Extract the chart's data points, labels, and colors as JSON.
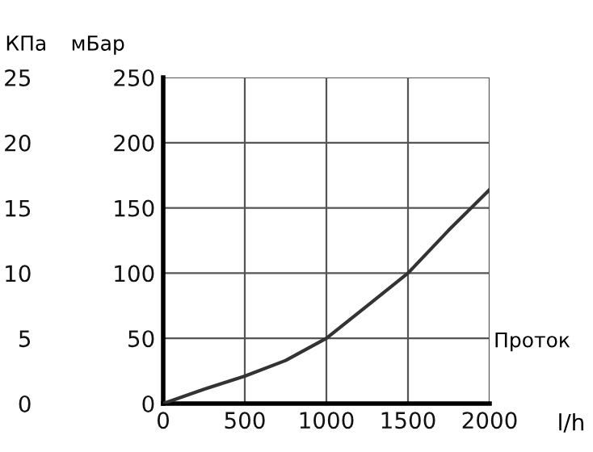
{
  "chart_data": {
    "type": "line",
    "xlabel": "l/h",
    "ylabel": "мБар",
    "y2label": "КПа",
    "annotations": [
      "Проток"
    ],
    "x": [
      0,
      250,
      500,
      750,
      1000,
      1250,
      1500,
      1750,
      2000
    ],
    "series": [
      {
        "color": "#333333",
        "values": [
          0,
          11,
          21,
          33,
          50,
          75,
          100,
          133,
          164
        ]
      }
    ],
    "xlim": [
      0,
      2000
    ],
    "xticks": [
      0,
      500,
      1000,
      1500,
      2000
    ],
    "ylim": [
      0,
      250
    ],
    "yticks": [
      0,
      50,
      100,
      150,
      200,
      250
    ],
    "y2lim": [
      0,
      25
    ],
    "y2ticks": [
      0,
      5,
      10,
      15,
      20,
      25
    ],
    "grid": true,
    "marker": "none",
    "line_style": "solid"
  }
}
